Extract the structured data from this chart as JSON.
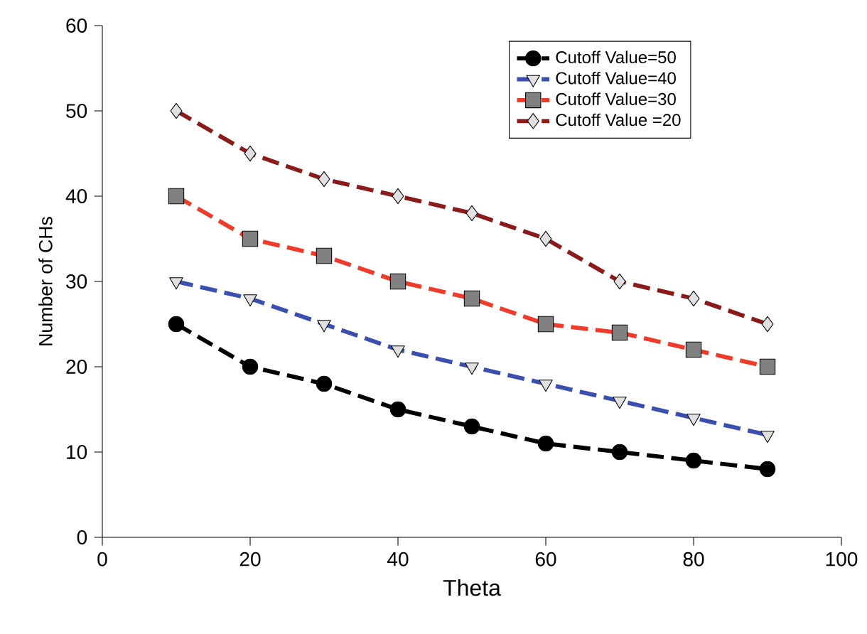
{
  "chart_data": {
    "type": "line",
    "xlabel": "Theta",
    "ylabel": "Number of CHs",
    "x": [
      10,
      20,
      30,
      40,
      50,
      60,
      70,
      80,
      90
    ],
    "series": [
      {
        "name": "Cutoff Value=50",
        "color": "#000000",
        "marker": "circle",
        "values": [
          25,
          20,
          18,
          15,
          13,
          11,
          10,
          9,
          8
        ]
      },
      {
        "name": "Cutoff Value=40",
        "color": "#3a4fb0",
        "marker": "triangle",
        "values": [
          30,
          28,
          25,
          22,
          20,
          18,
          16,
          14,
          12
        ]
      },
      {
        "name": "Cutoff Value=30",
        "color": "#f03a2a",
        "marker": "square",
        "values": [
          40,
          35,
          33,
          30,
          28,
          25,
          24,
          22,
          20
        ]
      },
      {
        "name": "Cutoff Value =20",
        "color": "#8b1a1a",
        "marker": "diamond",
        "values": [
          50,
          45,
          42,
          40,
          38,
          35,
          30,
          28,
          25
        ]
      }
    ],
    "xlim": [
      0,
      100
    ],
    "ylim": [
      0,
      60
    ],
    "xticks": [
      0,
      20,
      40,
      60,
      80,
      100
    ],
    "yticks": [
      0,
      10,
      20,
      30,
      40,
      50,
      60
    ],
    "grid": false,
    "legend": "top right",
    "line_style": "dashed"
  }
}
